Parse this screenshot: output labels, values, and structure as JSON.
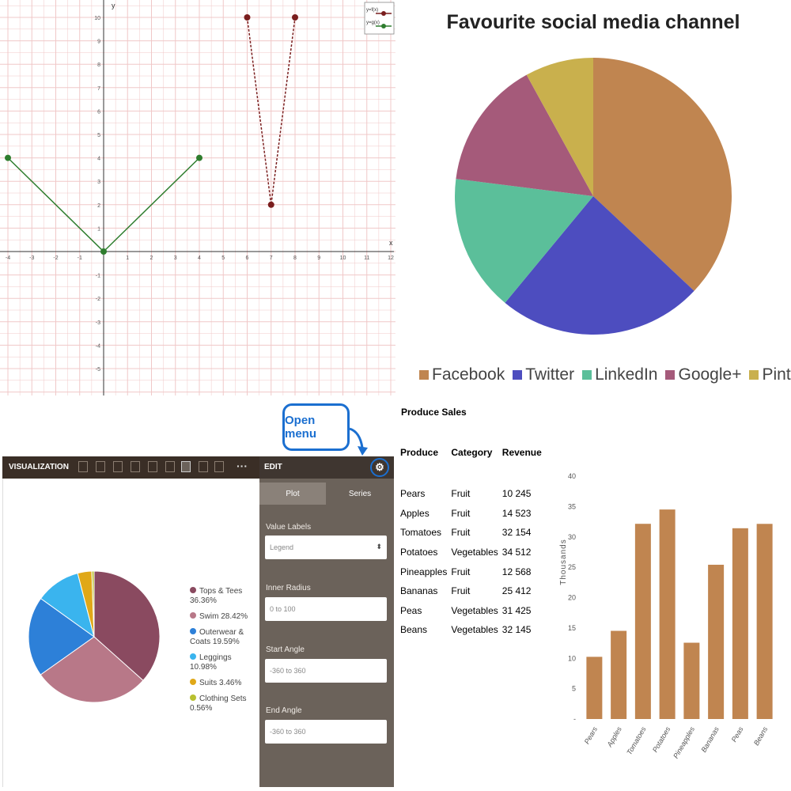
{
  "graph": {
    "legend": [
      "y=f(x)",
      "y=g(x)"
    ],
    "x_axis_letter": "x",
    "y_axis_letter": "y",
    "colors": {
      "f": "#7a1e1e",
      "g": "#2e7d2e",
      "grid": "#f0c8c8"
    }
  },
  "social": {
    "title": "Favourite social media channel"
  },
  "viz": {
    "callout": "Open menu",
    "toolbar_title": "VISUALIZATION",
    "toolbar_more": "···",
    "edit_title": "EDIT",
    "gear_icon": "gear-icon",
    "tabs": [
      "Plot",
      "Series"
    ],
    "fields": [
      {
        "label": "Value Labels",
        "value": "Legend",
        "select": true
      },
      {
        "label": "Inner Radius",
        "value": "0 to 100"
      },
      {
        "label": "Start Angle",
        "value": "-360 to 360"
      },
      {
        "label": "End Angle",
        "value": "-360 to 360"
      }
    ]
  },
  "produce": {
    "title": "Produce Sales",
    "headers": [
      "Produce",
      "Category",
      "Revenue"
    ],
    "rows": [
      [
        "Pears",
        "Fruit",
        "10 245"
      ],
      [
        "Apples",
        "Fruit",
        "14 523"
      ],
      [
        "Tomatoes",
        "Fruit",
        "32 154"
      ],
      [
        "Potatoes",
        "Vegetables",
        "34 512"
      ],
      [
        "Pineapples",
        "Fruit",
        "12 568"
      ],
      [
        "Bananas",
        "Fruit",
        "25 412"
      ],
      [
        "Peas",
        "Vegetables",
        "31 425"
      ],
      [
        "Beans",
        "Vegetables",
        "32 145"
      ]
    ]
  },
  "chart_data": [
    {
      "type": "line",
      "xlim": [
        -4,
        12
      ],
      "ylim": [
        -6,
        10
      ],
      "grid": true,
      "legend_position": "top-right",
      "series": [
        {
          "name": "y=f(x)",
          "x": [
            6,
            7,
            8
          ],
          "y": [
            10,
            2,
            10
          ],
          "color": "#7a1e1e",
          "dashed": true
        },
        {
          "name": "y=g(x)",
          "x": [
            -4,
            0,
            4
          ],
          "y": [
            4,
            0,
            4
          ],
          "color": "#2e7d2e"
        }
      ],
      "xticks": [
        -4,
        -3,
        -2,
        -1,
        1,
        2,
        3,
        4,
        5,
        6,
        7,
        8,
        9,
        10,
        11,
        12
      ],
      "yticks": [
        10,
        9,
        8,
        7,
        6,
        5,
        4,
        3,
        2,
        1,
        -1,
        -2,
        -3,
        -4,
        -5
      ]
    },
    {
      "type": "pie",
      "title": "Favourite social media channel",
      "categories": [
        "Facebook",
        "Twitter",
        "LinkedIn",
        "Google+",
        "Pinterest"
      ],
      "values": [
        37,
        24,
        16,
        15,
        8
      ],
      "colors": [
        "#c08550",
        "#4d4dbf",
        "#5bbf9a",
        "#a55a7a",
        "#c9b04d"
      ],
      "start_angle_deg": 0,
      "legend_position": "bottom"
    },
    {
      "type": "pie",
      "categories": [
        "Tops & Tees 36.36%",
        "Swim 28.42%",
        "Outerwear & Coats 19.59%",
        "Leggings 10.98%",
        "Suits 3.46%",
        "Clothing Sets 0.56%"
      ],
      "values": [
        36.36,
        28.42,
        19.59,
        10.98,
        3.46,
        0.56
      ],
      "colors": [
        "#8a4a60",
        "#b87888",
        "#2d80d8",
        "#3ab4ee",
        "#e0a818",
        "#b8c030"
      ],
      "legend_position": "right"
    },
    {
      "type": "bar",
      "categories": [
        "Pears",
        "Apples",
        "Tomatoes",
        "Potatoes",
        "Pineapples",
        "Bananas",
        "Peas",
        "Beans"
      ],
      "values": [
        10245,
        14523,
        32154,
        34512,
        12568,
        25412,
        31425,
        32145
      ],
      "ylabel": "Thousands",
      "ylim": [
        0,
        40000
      ],
      "yticks": [
        "-",
        "5",
        "10",
        "15",
        "20",
        "25",
        "30",
        "35",
        "40"
      ],
      "color": "#c08550"
    }
  ]
}
